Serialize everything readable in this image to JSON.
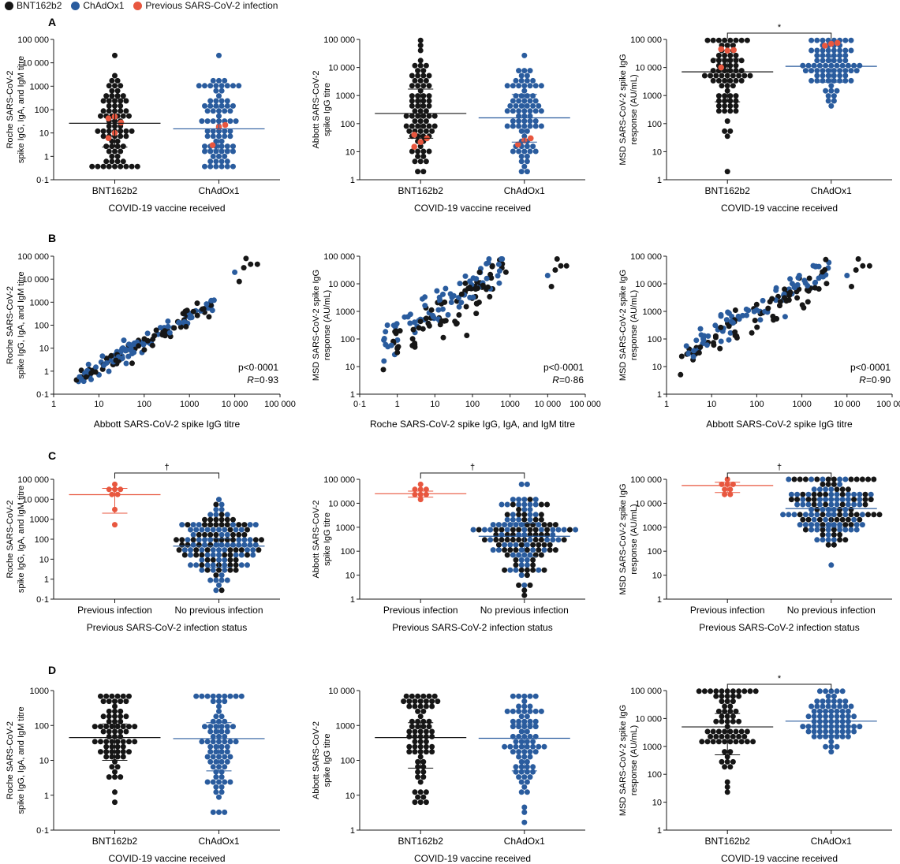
{
  "colors": {
    "bnt": "#161616",
    "chad": "#2a5c9e",
    "prev": "#e8573f",
    "axis": "#1a1a1a"
  },
  "legend": [
    {
      "label": "BNT162b2",
      "color": "#161616"
    },
    {
      "label": "ChAdOx1",
      "color": "#2a5c9e"
    },
    {
      "label": "Previous SARS-CoV-2 infection",
      "color": "#e8573f"
    }
  ],
  "row_labels": [
    "A",
    "B",
    "C",
    "D"
  ],
  "chart_data": [
    {
      "id": "A1",
      "row": "A",
      "type": "scatter",
      "ylabel": [
        "Roche SARS-CoV-2",
        "spike IgG, IgA, and IgM titre"
      ],
      "xlabel": "COVID-19 vaccine received",
      "yscale": "log",
      "ylim": [
        0.1,
        100000
      ],
      "yticks": [
        "0·1",
        "1",
        "10",
        "100",
        "1000",
        "10 000",
        "100 000"
      ],
      "groups": [
        "BNT162b2",
        "ChAdOx1"
      ],
      "n": [
        74,
        76
      ],
      "median": [
        26,
        15
      ],
      "iqr": [
        [
          2.5,
          290
        ],
        [
          1.9,
          130
        ]
      ],
      "previous_infection": [
        [
          6,
          10,
          28,
          42,
          50
        ],
        [
          3,
          18,
          22
        ]
      ],
      "significance": ""
    },
    {
      "id": "A2",
      "row": "A",
      "type": "scatter",
      "ylabel": [
        "Abbott SARS-CoV-2",
        "spike IgG titre"
      ],
      "xlabel": "COVID-19 vaccine received",
      "yscale": "log",
      "ylim": [
        1,
        100000
      ],
      "yticks": [
        "1",
        "10",
        "100",
        "1000",
        "10 000",
        "100 000"
      ],
      "groups": [
        "BNT162b2",
        "ChAdOx1"
      ],
      "n": [
        74,
        76
      ],
      "median": [
        230,
        160
      ],
      "iqr": [
        [
          30,
          1700
        ],
        [
          22,
          1100
        ]
      ],
      "previous_infection": [
        [
          15,
          22,
          30,
          40
        ],
        [
          18,
          25,
          30
        ]
      ],
      "significance": ""
    },
    {
      "id": "A3",
      "row": "A",
      "type": "scatter",
      "ylabel": [
        "MSD SARS-CoV-2 spike IgG",
        "response (AU/mL)"
      ],
      "xlabel": "COVID-19 vaccine received",
      "yscale": "log",
      "ylim": [
        1,
        100000
      ],
      "yticks": [
        "1",
        "10",
        "100",
        "1000",
        "10 000",
        "100 000"
      ],
      "groups": [
        "BNT162b2",
        "ChAdOx1"
      ],
      "n": [
        74,
        76
      ],
      "median": [
        7000,
        11000
      ],
      "iqr": [
        [
          600,
          20000
        ],
        [
          3000,
          25000
        ]
      ],
      "previous_infection": [
        [
          10000,
          40000,
          42000,
          45000
        ],
        [
          60000,
          70000,
          75000
        ]
      ],
      "significance": "*"
    },
    {
      "id": "B1",
      "row": "B",
      "type": "scatter",
      "ylabel": [
        "Roche SARS-CoV-2",
        "spike IgG, IgA, and IgM titre"
      ],
      "xlabel": "Abbott SARS-CoV-2 spike IgG titre",
      "xscale": "log",
      "yscale": "log",
      "xlim": [
        1,
        100000
      ],
      "ylim": [
        0.1,
        100000
      ],
      "xticks": [
        "1",
        "10",
        "100",
        "1000",
        "10 000",
        "100 000"
      ],
      "yticks": [
        "0·1",
        "1",
        "10",
        "100",
        "1000",
        "10 000",
        "100 000"
      ],
      "stat_p": "p<0·0001",
      "stat_r_label": "R",
      "stat_r_value": "=0·93"
    },
    {
      "id": "B2",
      "row": "B",
      "type": "scatter",
      "ylabel": [
        "MSD SARS-CoV-2 spike IgG",
        "response (AU/mL)"
      ],
      "xlabel": "Roche SARS-CoV-2 spike IgG, IgA, and IgM titre",
      "xscale": "log",
      "yscale": "log",
      "xlim": [
        0.1,
        100000
      ],
      "ylim": [
        1,
        100000
      ],
      "xticks": [
        "0·1",
        "1",
        "10",
        "100",
        "1000",
        "10 000",
        "100 000"
      ],
      "yticks": [
        "1",
        "10",
        "100",
        "1000",
        "10 000",
        "100 000"
      ],
      "stat_p": "p<0·0001",
      "stat_r_label": "R",
      "stat_r_value": "=0·86"
    },
    {
      "id": "B3",
      "row": "B",
      "type": "scatter",
      "ylabel": [
        "MSD SARS-CoV-2 spike IgG",
        "response (AU/mL)"
      ],
      "xlabel": "Abbott SARS-CoV-2 spike IgG titre",
      "xscale": "log",
      "yscale": "log",
      "xlim": [
        1,
        100000
      ],
      "ylim": [
        1,
        100000
      ],
      "xticks": [
        "1",
        "10",
        "100",
        "1000",
        "10 000",
        "100 000"
      ],
      "yticks": [
        "1",
        "10",
        "100",
        "1000",
        "10 000",
        "100 000"
      ],
      "stat_p": "p<0·0001",
      "stat_r_label": "R",
      "stat_r_value": "=0·90"
    },
    {
      "id": "C1",
      "row": "C",
      "type": "scatter",
      "ylabel": [
        "Roche SARS-CoV-2",
        "spike IgG, IgA, and IgM titre"
      ],
      "xlabel": "Previous SARS-CoV-2 infection status",
      "yscale": "log",
      "ylim": [
        0.1,
        100000
      ],
      "yticks": [
        "0·1",
        "1",
        "10",
        "100",
        "1000",
        "10 000",
        "100 000"
      ],
      "groups": [
        "Previous infection",
        "No previous infection"
      ],
      "n": [
        8,
        142
      ],
      "median": [
        17000,
        45
      ],
      "iqr": [
        [
          2000,
          35000
        ],
        [
          4,
          110
        ]
      ],
      "significance": "†"
    },
    {
      "id": "C2",
      "row": "C",
      "type": "scatter",
      "ylabel": [
        "Abbott SARS-CoV-2",
        "spike IgG titre"
      ],
      "xlabel": "Previous SARS-CoV-2 infection status",
      "yscale": "log",
      "ylim": [
        1,
        100000
      ],
      "yticks": [
        "1",
        "10",
        "100",
        "1000",
        "10 000",
        "100 000"
      ],
      "groups": [
        "Previous infection",
        "No previous infection"
      ],
      "n": [
        8,
        142
      ],
      "median": [
        25000,
        420
      ],
      "iqr": [
        [
          18000,
          32000
        ],
        [
          60,
          1500
        ]
      ],
      "significance": "†"
    },
    {
      "id": "C3",
      "row": "C",
      "type": "scatter",
      "ylabel": [
        "MSD SARS-CoV-2 spike IgG",
        "response (AU/mL)"
      ],
      "xlabel": "Previous SARS-CoV-2 infection status",
      "yscale": "log",
      "ylim": [
        1,
        100000
      ],
      "yticks": [
        "1",
        "10",
        "100",
        "1000",
        "10 000",
        "100 000"
      ],
      "groups": [
        "Previous infection",
        "No previous infection"
      ],
      "n": [
        8,
        142
      ],
      "median": [
        55000,
        6000
      ],
      "iqr": [
        [
          28000,
          75000
        ],
        [
          1000,
          15000
        ]
      ],
      "significance": "†"
    },
    {
      "id": "D1",
      "row": "D",
      "type": "scatter",
      "ylabel": [
        "Roche SARS-CoV-2",
        "spike IgG, IgA, and IgM titre"
      ],
      "xlabel": "COVID-19 vaccine received",
      "yscale": "log",
      "ylim": [
        0.1,
        1000
      ],
      "yticks": [
        "0·1",
        "1",
        "10",
        "100",
        "1000"
      ],
      "groups": [
        "BNT162b2",
        "ChAdOx1"
      ],
      "n": [
        70,
        76
      ],
      "median": [
        45,
        42
      ],
      "iqr": [
        [
          10,
          110
        ],
        [
          5,
          120
        ]
      ],
      "significance": ""
    },
    {
      "id": "D2",
      "row": "D",
      "type": "scatter",
      "ylabel": [
        "Abbott SARS-CoV-2",
        "spike IgG titre"
      ],
      "xlabel": "COVID-19 vaccine received",
      "yscale": "log",
      "ylim": [
        1,
        10000
      ],
      "yticks": [
        "1",
        "10",
        "100",
        "1000",
        "10 000"
      ],
      "groups": [
        "BNT162b2",
        "ChAdOx1"
      ],
      "n": [
        70,
        76
      ],
      "median": [
        450,
        430
      ],
      "iqr": [
        [
          60,
          1200
        ],
        [
          50,
          1100
        ]
      ],
      "significance": ""
    },
    {
      "id": "D3",
      "row": "D",
      "type": "scatter",
      "ylabel": [
        "MSD SARS-CoV-2 spike IgG",
        "response (AU/mL)"
      ],
      "xlabel": "COVID-19 vaccine received",
      "yscale": "log",
      "ylim": [
        1,
        100000
      ],
      "yticks": [
        "1",
        "10",
        "100",
        "1000",
        "10 000",
        "100 000"
      ],
      "groups": [
        "BNT162b2",
        "ChAdOx1"
      ],
      "n": [
        70,
        76
      ],
      "median": [
        5000,
        8000
      ],
      "iqr": [
        [
          500,
          15000
        ],
        [
          2500,
          18000
        ]
      ],
      "significance": "*"
    }
  ]
}
